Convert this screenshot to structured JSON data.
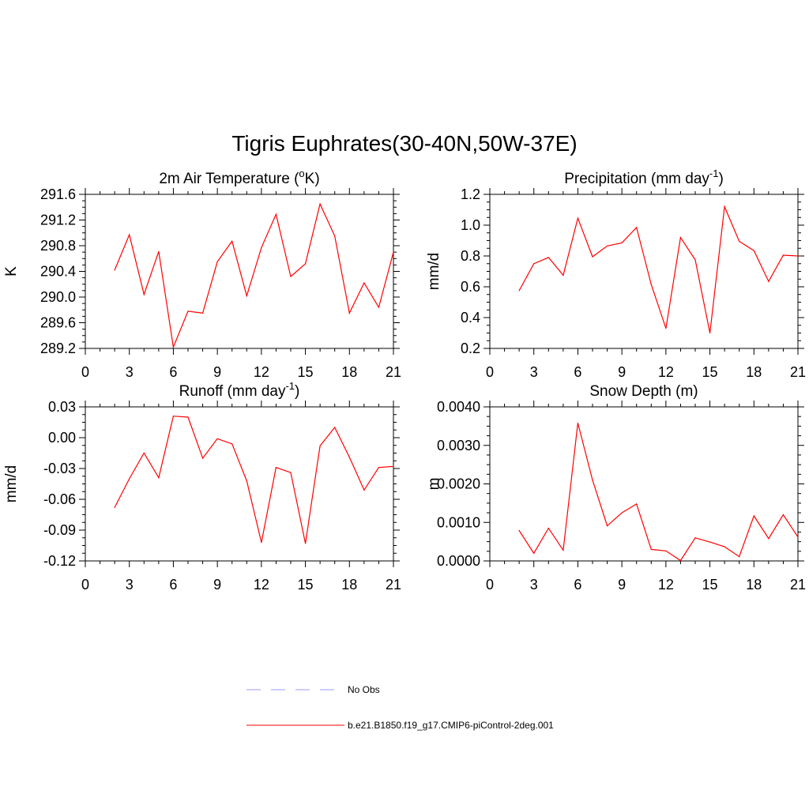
{
  "title": "Tigris Euphrates(30-40N,50W-37E)",
  "legend": [
    {
      "label": "No Obs",
      "color": "#9999ff",
      "dash": true
    },
    {
      "label": "b.e21.B1850.f19_g17.CMIP6-piControl-2deg.001",
      "color": "#ff0000",
      "dash": false
    }
  ],
  "chart_data": [
    {
      "type": "line",
      "title": "2m Air Temperature (",
      "title_sup": "o",
      "title_after": "K)",
      "ylabel": "K",
      "xlim": [
        0,
        21
      ],
      "ylim": [
        289.2,
        291.6
      ],
      "xticks": [
        0,
        3,
        6,
        9,
        12,
        15,
        18,
        21
      ],
      "yticks": [
        289.2,
        289.6,
        290.0,
        290.4,
        290.8,
        291.2,
        291.6
      ],
      "ytick_labels": [
        "289.2",
        "289.6",
        "290.0",
        "290.4",
        "290.8",
        "291.2",
        "291.6"
      ],
      "line_color": "#ff0000",
      "series": [
        {
          "x": [
            2,
            3,
            4,
            5,
            6,
            7,
            8,
            9,
            10,
            11,
            12,
            13,
            14,
            15,
            16,
            17,
            18,
            19,
            20,
            21
          ],
          "values": [
            290.42,
            290.97,
            290.04,
            290.71,
            289.22,
            289.78,
            289.75,
            290.55,
            290.87,
            290.02,
            290.77,
            291.29,
            290.32,
            290.52,
            291.45,
            290.95,
            289.75,
            290.22,
            289.84,
            290.7
          ]
        }
      ]
    },
    {
      "type": "line",
      "title": "Precipitation (mm day",
      "title_sup": "-1",
      "title_after": ")",
      "ylabel": "mm/d",
      "xlim": [
        0,
        21
      ],
      "ylim": [
        0.2,
        1.2
      ],
      "xticks": [
        0,
        3,
        6,
        9,
        12,
        15,
        18,
        21
      ],
      "yticks": [
        0.2,
        0.4,
        0.6,
        0.8,
        1.0,
        1.2
      ],
      "ytick_labels": [
        "0.2",
        "0.4",
        "0.6",
        "0.8",
        "1.0",
        "1.2"
      ],
      "line_color": "#ff0000",
      "series": [
        {
          "x": [
            2,
            3,
            4,
            5,
            6,
            7,
            8,
            9,
            10,
            11,
            12,
            13,
            14,
            15,
            16,
            17,
            18,
            19,
            20,
            21
          ],
          "values": [
            0.575,
            0.75,
            0.79,
            0.675,
            1.045,
            0.795,
            0.865,
            0.885,
            0.985,
            0.615,
            0.33,
            0.92,
            0.775,
            0.3,
            1.12,
            0.895,
            0.835,
            0.635,
            0.805,
            0.8
          ]
        }
      ]
    },
    {
      "type": "line",
      "title": "Runoff (mm day",
      "title_sup": "-1",
      "title_after": ")",
      "ylabel": "mm/d",
      "xlim": [
        0,
        21
      ],
      "ylim": [
        -0.12,
        0.03
      ],
      "xticks": [
        0,
        3,
        6,
        9,
        12,
        15,
        18,
        21
      ],
      "yticks": [
        -0.12,
        -0.09,
        -0.06,
        -0.03,
        0.0,
        0.03
      ],
      "ytick_labels": [
        "-0.12",
        "-0.09",
        "-0.06",
        "-0.03",
        "0.00",
        "0.03"
      ],
      "line_color": "#ff0000",
      "series": [
        {
          "x": [
            2,
            3,
            4,
            5,
            6,
            7,
            8,
            9,
            10,
            11,
            12,
            13,
            14,
            15,
            16,
            17,
            18,
            19,
            20,
            21
          ],
          "values": [
            -0.068,
            -0.04,
            -0.015,
            -0.039,
            0.021,
            0.02,
            -0.02,
            -0.001,
            -0.006,
            -0.042,
            -0.102,
            -0.029,
            -0.034,
            -0.103,
            -0.008,
            0.01,
            -0.019,
            -0.051,
            -0.029,
            -0.028
          ]
        }
      ]
    },
    {
      "type": "line",
      "title": "Snow Depth (m)",
      "title_sup": "",
      "title_after": "",
      "ylabel": "m",
      "xlim": [
        0,
        21
      ],
      "ylim": [
        0.0,
        0.004
      ],
      "xticks": [
        0,
        3,
        6,
        9,
        12,
        15,
        18,
        21
      ],
      "yticks": [
        0.0,
        0.001,
        0.002,
        0.003,
        0.004
      ],
      "ytick_labels": [
        "0.0000",
        "0.0010",
        "0.0020",
        "0.0030",
        "0.0040"
      ],
      "line_color": "#ff0000",
      "series": [
        {
          "x": [
            2,
            3,
            4,
            5,
            6,
            7,
            8,
            9,
            10,
            11,
            12,
            13,
            14,
            15,
            16,
            17,
            18,
            19,
            20,
            21
          ],
          "values": [
            0.00079,
            0.0002,
            0.00085,
            0.00028,
            0.00358,
            0.0021,
            0.00091,
            0.00125,
            0.00148,
            0.0003,
            0.00026,
            1e-05,
            0.0006,
            0.00049,
            0.00037,
            0.00011,
            0.00117,
            0.00058,
            0.0012,
            0.00062
          ]
        }
      ]
    }
  ]
}
